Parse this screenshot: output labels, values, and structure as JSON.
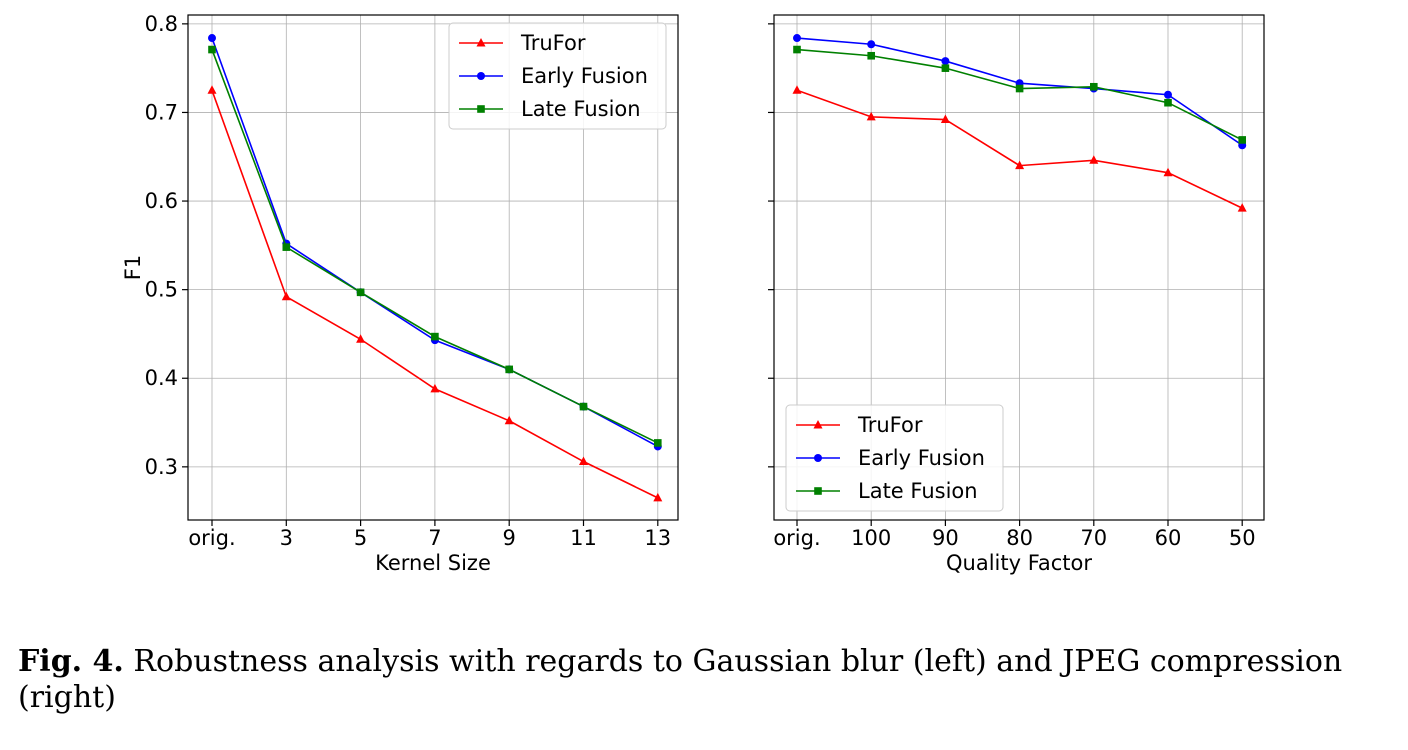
{
  "caption": {
    "label": "Fig. 4.",
    "text": " Robustness analysis with regards to Gaussian blur (left) and JPEG compression (right)"
  },
  "chart_data": [
    {
      "type": "line",
      "xlabel": "Kernel Size",
      "ylabel": "F1",
      "categories": [
        "orig.",
        "3",
        "5",
        "7",
        "9",
        "11",
        "13"
      ],
      "ylim": [
        0.24,
        0.81
      ],
      "yticks": [
        0.3,
        0.4,
        0.5,
        0.6,
        0.7,
        0.8
      ],
      "ytick_labels": [
        "0.3",
        "0.4",
        "0.5",
        "0.6",
        "0.7",
        "0.8"
      ],
      "grid": true,
      "legend_position": "top-right",
      "series": [
        {
          "name": "TruFor",
          "color": "#ff0000",
          "marker": "triangle",
          "values": [
            0.725,
            0.492,
            0.444,
            0.388,
            0.352,
            0.306,
            0.265
          ]
        },
        {
          "name": "Early Fusion",
          "color": "#0000ff",
          "marker": "circle",
          "values": [
            0.784,
            0.552,
            0.497,
            0.443,
            0.41,
            0.368,
            0.323
          ]
        },
        {
          "name": "Late Fusion",
          "color": "#008000",
          "marker": "square",
          "values": [
            0.771,
            0.548,
            0.497,
            0.447,
            0.41,
            0.368,
            0.327
          ]
        }
      ]
    },
    {
      "type": "line",
      "xlabel": "Quality Factor",
      "ylabel": "",
      "categories": [
        "orig.",
        "100",
        "90",
        "80",
        "70",
        "60",
        "50"
      ],
      "ylim": [
        0.24,
        0.81
      ],
      "yticks": [
        0.3,
        0.4,
        0.5,
        0.6,
        0.7,
        0.8
      ],
      "ytick_labels": [],
      "grid": true,
      "legend_position": "lower-left",
      "series": [
        {
          "name": "TruFor",
          "color": "#ff0000",
          "marker": "triangle",
          "values": [
            0.725,
            0.695,
            0.692,
            0.64,
            0.646,
            0.632,
            0.592
          ]
        },
        {
          "name": "Early Fusion",
          "color": "#0000ff",
          "marker": "circle",
          "values": [
            0.784,
            0.777,
            0.758,
            0.733,
            0.727,
            0.72,
            0.663
          ]
        },
        {
          "name": "Late Fusion",
          "color": "#008000",
          "marker": "square",
          "values": [
            0.771,
            0.764,
            0.75,
            0.727,
            0.729,
            0.711,
            0.669
          ]
        }
      ]
    }
  ]
}
